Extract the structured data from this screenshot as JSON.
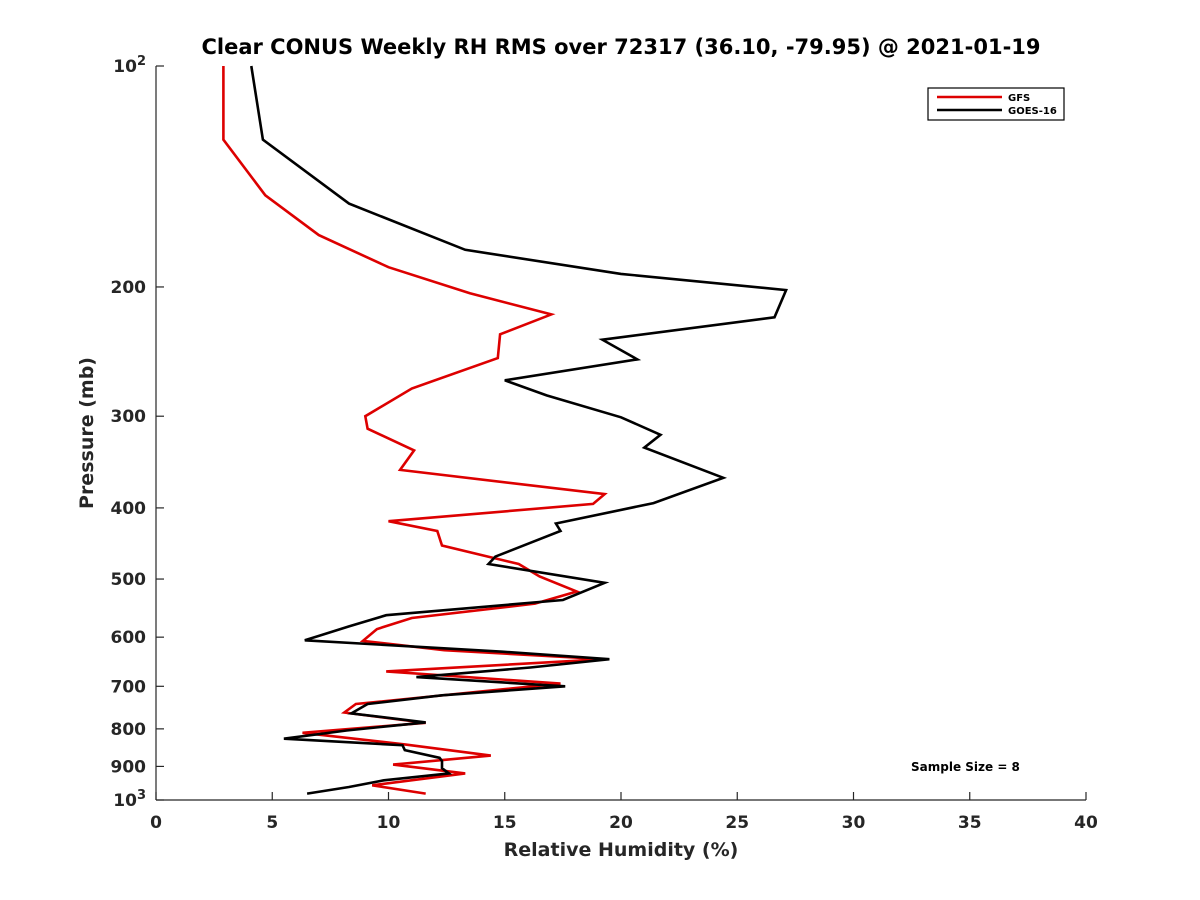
{
  "chart_data": {
    "type": "line",
    "title": "Clear CONUS Weekly RH RMS over 72317 (36.10, -79.95) @ 2021-01-19",
    "xlabel": "Relative Humidity (%)",
    "ylabel": "Pressure (mb)",
    "xlim": [
      0,
      40
    ],
    "ylim": [
      100,
      1000
    ],
    "yscale": "log",
    "y_reversed": true,
    "grid": false,
    "legend_position": "top-right",
    "x_ticks": [
      0,
      5,
      10,
      15,
      20,
      25,
      30,
      35,
      40
    ],
    "y_ticks": [
      100,
      200,
      300,
      400,
      500,
      600,
      700,
      800,
      900,
      1000
    ],
    "y_tick_labels": [
      {
        "base": "10",
        "exp": "2"
      },
      {
        "base": "200"
      },
      {
        "base": "300"
      },
      {
        "base": "400"
      },
      {
        "base": "500"
      },
      {
        "base": "600"
      },
      {
        "base": "700"
      },
      {
        "base": "800"
      },
      {
        "base": "900"
      },
      {
        "base": "10",
        "exp": "3"
      }
    ],
    "annotation": "Sample Size = 8",
    "series": [
      {
        "name": "GFS",
        "color": "#dd0000",
        "x": [
          2.9,
          2.9,
          4.7,
          7.0,
          10.0,
          13.5,
          17.0,
          14.8,
          14.7,
          11.0,
          9.0,
          9.1,
          11.1,
          10.5,
          19.3,
          18.8,
          10.0,
          12.1,
          12.3,
          15.6,
          16.5,
          18.1,
          16.3,
          11.0,
          9.5,
          8.9,
          12.4,
          19.3,
          9.9,
          17.4,
          8.6,
          8.1,
          11.6,
          6.3,
          10.7,
          14.4,
          10.2,
          13.3,
          9.3,
          11.6
        ],
        "y": [
          100,
          126,
          150,
          170,
          188,
          204,
          218,
          232,
          250,
          275,
          300,
          312,
          334,
          355,
          383,
          395,
          417,
          430,
          450,
          477,
          496,
          520,
          540,
          565,
          585,
          607,
          625,
          643,
          668,
          694,
          740,
          760,
          785,
          810,
          840,
          870,
          895,
          920,
          955,
          980
        ]
      },
      {
        "name": "GOES-16",
        "color": "#000000",
        "x": [
          4.1,
          4.6,
          8.3,
          13.3,
          20.0,
          27.1,
          26.6,
          19.2,
          20.7,
          15.0,
          16.8,
          20.0,
          21.7,
          21.0,
          24.4,
          21.4,
          17.2,
          17.4,
          16.2,
          14.6,
          14.3,
          19.3,
          17.5,
          9.9,
          8.3,
          6.4,
          14.9,
          19.5,
          16.1,
          11.2,
          17.6,
          12.3,
          9.1,
          8.4,
          11.6,
          8.2,
          5.5,
          10.6,
          10.7,
          12.2,
          12.3,
          12.3,
          12.6,
          9.8,
          8.3,
          6.5
        ],
        "y": [
          100,
          126,
          154,
          178,
          192,
          202,
          220,
          236,
          251,
          268,
          281,
          301,
          318,
          331,
          364,
          394,
          420,
          430,
          445,
          466,
          477,
          506,
          534,
          560,
          580,
          606,
          628,
          643,
          660,
          680,
          700,
          720,
          740,
          762,
          784,
          804,
          825,
          842,
          855,
          876,
          885,
          905,
          920,
          940,
          960,
          980
        ]
      }
    ]
  }
}
